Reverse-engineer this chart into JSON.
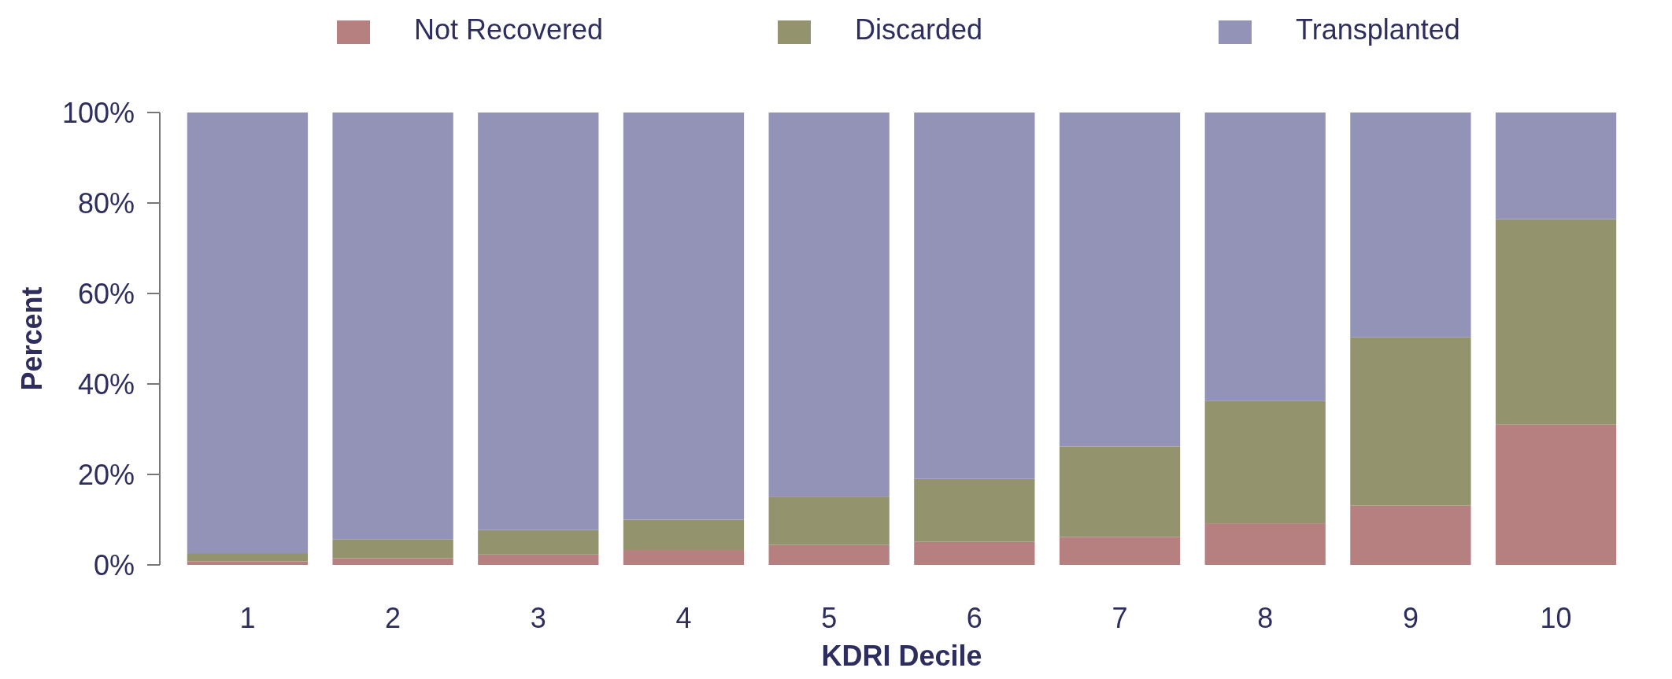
{
  "chart_data": {
    "type": "bar",
    "stacked": true,
    "xlabel": "KDRI Decile",
    "ylabel": "Percent",
    "categories": [
      "1",
      "2",
      "3",
      "4",
      "5",
      "6",
      "7",
      "8",
      "9",
      "10"
    ],
    "series": [
      {
        "name": "Not Recovered",
        "color": "#b78080",
        "values": [
          0.8,
          1.5,
          2.3,
          3.3,
          4.4,
          5.1,
          6.2,
          9.2,
          13.1,
          31.0
        ]
      },
      {
        "name": "Discarded",
        "color": "#93936e",
        "values": [
          1.8,
          4.1,
          5.4,
          6.7,
          10.7,
          13.9,
          20.0,
          27.0,
          37.2,
          45.4
        ]
      },
      {
        "name": "Transplanted",
        "color": "#9393b7",
        "values": [
          97.4,
          94.4,
          92.3,
          90.0,
          84.9,
          81.0,
          73.8,
          63.8,
          49.7,
          23.6
        ]
      }
    ],
    "ylim": [
      0,
      100
    ],
    "yticks": [
      {
        "value": 0,
        "label": "0%"
      },
      {
        "value": 20,
        "label": "20%"
      },
      {
        "value": 40,
        "label": "40%"
      },
      {
        "value": 60,
        "label": "60%"
      },
      {
        "value": 80,
        "label": "80%"
      },
      {
        "value": 100,
        "label": "100%"
      }
    ],
    "grid": false,
    "legend": "top"
  }
}
